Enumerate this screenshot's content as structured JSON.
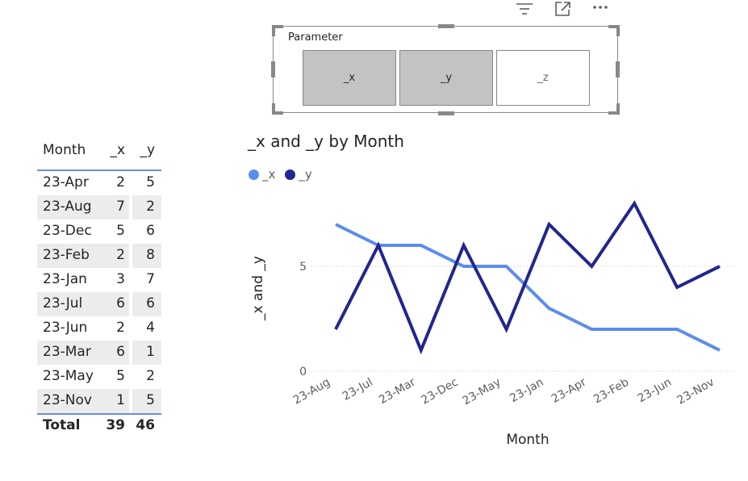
{
  "visual_header": {
    "icons": [
      "filter-icon",
      "focus-mode-icon",
      "more-options-icon"
    ]
  },
  "slicer": {
    "title": "Parameter",
    "tiles": [
      {
        "label": "_x",
        "selected": true
      },
      {
        "label": "_y",
        "selected": true
      },
      {
        "label": "_z",
        "selected": false
      }
    ]
  },
  "table": {
    "headers": [
      "Month",
      "_x",
      "_y"
    ],
    "rows": [
      [
        "23-Apr",
        "2",
        "5"
      ],
      [
        "23-Aug",
        "7",
        "2"
      ],
      [
        "23-Dec",
        "5",
        "6"
      ],
      [
        "23-Feb",
        "2",
        "8"
      ],
      [
        "23-Jan",
        "3",
        "7"
      ],
      [
        "23-Jul",
        "6",
        "6"
      ],
      [
        "23-Jun",
        "2",
        "4"
      ],
      [
        "23-Mar",
        "6",
        "1"
      ],
      [
        "23-May",
        "5",
        "2"
      ],
      [
        "23-Nov",
        "1",
        "5"
      ]
    ],
    "total": [
      "Total",
      "39",
      "46"
    ]
  },
  "colors": {
    "series_x": "#5b8def",
    "series_y": "#21268f",
    "row_alt": "#ececec",
    "header_rule": "#6b8fd6"
  },
  "chart_data": {
    "type": "line",
    "title": "_x and _y by Month",
    "xlabel": "Month",
    "ylabel": "_x and _y",
    "categories": [
      "23-Aug",
      "23-Jul",
      "23-Mar",
      "23-Dec",
      "23-May",
      "23-Jan",
      "23-Apr",
      "23-Feb",
      "23-Jun",
      "23-Nov"
    ],
    "series": [
      {
        "name": "_x",
        "values": [
          7,
          6,
          6,
          5,
          5,
          3,
          2,
          2,
          2,
          1
        ]
      },
      {
        "name": "_y",
        "values": [
          2,
          6,
          1,
          6,
          2,
          7,
          5,
          8,
          4,
          5
        ]
      }
    ],
    "yticks": [
      "0",
      "5"
    ],
    "ylim": [
      0,
      8
    ],
    "grid": true,
    "legend": "top-left"
  }
}
